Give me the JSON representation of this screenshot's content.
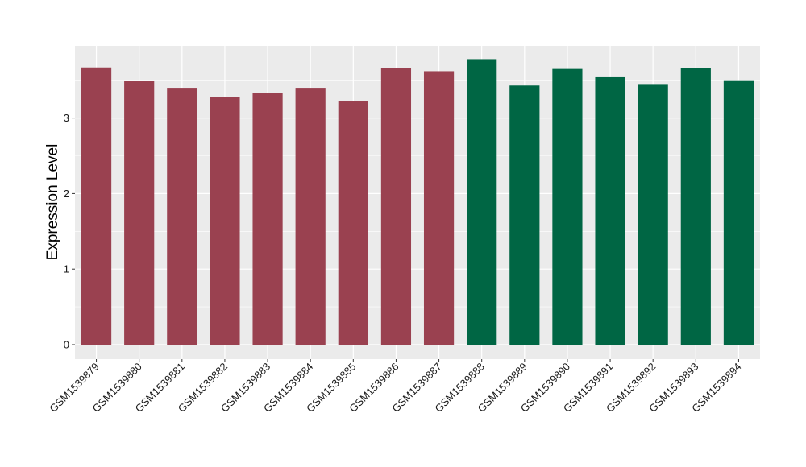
{
  "chart_data": {
    "type": "bar",
    "title": "",
    "xlabel": "",
    "ylabel": "Expression Level",
    "ylim": [
      0,
      3.95
    ],
    "yticks": [
      0,
      1,
      2,
      3
    ],
    "grid": true,
    "legend": "none",
    "categories": [
      "GSM1539879",
      "GSM1539880",
      "GSM1539881",
      "GSM1539882",
      "GSM1539883",
      "GSM1539884",
      "GSM1539885",
      "GSM1539886",
      "GSM1539887",
      "GSM1539888",
      "GSM1539889",
      "GSM1539890",
      "GSM1539891",
      "GSM1539892",
      "GSM1539893",
      "GSM1539894"
    ],
    "values": [
      3.67,
      3.49,
      3.4,
      3.28,
      3.33,
      3.4,
      3.22,
      3.66,
      3.62,
      3.78,
      3.43,
      3.65,
      3.54,
      3.45,
      3.66,
      3.5
    ],
    "groups": [
      0,
      0,
      0,
      0,
      0,
      0,
      0,
      0,
      0,
      1,
      1,
      1,
      1,
      1,
      1,
      1
    ],
    "group_colors": [
      "#9a4150",
      "#006644"
    ],
    "panel_color": "#ebebeb",
    "grid_color": "#ffffff"
  }
}
